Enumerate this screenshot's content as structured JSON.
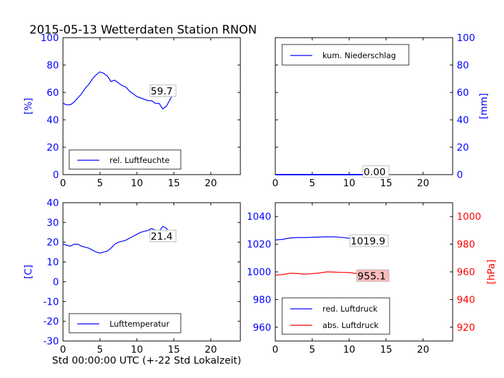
{
  "figure_title": "2015-05-13 Wetterdaten Station RNON",
  "xlabel": "Std 00:00:00 UTC (+-22 Std Lokalzeit)",
  "colors": {
    "blue": "#0000ff",
    "red": "#ff0000",
    "axis": "#000000",
    "label_box_red": "#ffbbbb"
  },
  "chart_data": [
    {
      "type": "line",
      "id": "humidity",
      "ylabel": "[%]",
      "xlim": [
        0,
        24
      ],
      "ylim": [
        0,
        100
      ],
      "xticks": [
        "0",
        "5",
        "10",
        "15",
        "20"
      ],
      "yticks": [
        "0",
        "20",
        "40",
        "60",
        "80",
        "100"
      ],
      "legend": "rel. Luftfeuchte",
      "legend_position": "lower left",
      "annotation": "59.7",
      "series": [
        {
          "color": "#0000ff",
          "x": [
            0,
            0.5,
            1,
            1.5,
            2,
            2.5,
            3,
            3.5,
            4,
            4.5,
            5,
            5.5,
            6,
            6.5,
            7,
            7.5,
            8,
            8.5,
            9,
            9.5,
            10,
            10.5,
            11,
            11.5,
            12,
            12.5,
            13,
            13.5,
            14,
            14.5,
            15
          ],
          "y": [
            52,
            51,
            51,
            53,
            56,
            59,
            63,
            66,
            70,
            73,
            75,
            74,
            72,
            68,
            69,
            67,
            65,
            64,
            61,
            59,
            57,
            56,
            55,
            54,
            54,
            52,
            52,
            48,
            50,
            55,
            60
          ]
        }
      ]
    },
    {
      "type": "line",
      "id": "precipitation",
      "ylabel": "[mm]",
      "xlim": [
        0,
        24
      ],
      "ylim": [
        0,
        100
      ],
      "xticks": [
        "0",
        "5",
        "10",
        "15",
        "20"
      ],
      "yticks": [
        "0",
        "20",
        "40",
        "60",
        "80",
        "100"
      ],
      "legend": "kum. Niederschlag",
      "legend_position": "upper left",
      "annotation": "0.00",
      "series": [
        {
          "color": "#0000ff",
          "x": [
            0,
            15
          ],
          "y": [
            0,
            0
          ]
        }
      ]
    },
    {
      "type": "line",
      "id": "temperature",
      "ylabel": "[C]",
      "xlim": [
        0,
        24
      ],
      "ylim": [
        -30,
        40
      ],
      "xticks": [
        "0",
        "5",
        "10",
        "15",
        "20"
      ],
      "yticks": [
        "-30",
        "-20",
        "-10",
        "0",
        "10",
        "20",
        "30",
        "40"
      ],
      "legend": "Lufttemperatur",
      "legend_position": "lower left",
      "annotation": "21.4",
      "series": [
        {
          "color": "#0000ff",
          "x": [
            0,
            0.5,
            1,
            1.5,
            2,
            2.5,
            3,
            3.5,
            4,
            4.5,
            5,
            5.5,
            6,
            6.5,
            7,
            7.5,
            8,
            8.5,
            9,
            9.5,
            10,
            10.5,
            11,
            11.5,
            12,
            12.5,
            13,
            13.5,
            14,
            14.5,
            15
          ],
          "y": [
            19,
            18.5,
            18,
            19,
            19,
            18,
            17.5,
            17,
            16,
            15,
            14.5,
            15,
            15.5,
            17,
            19,
            20,
            20.5,
            21,
            22,
            23,
            24,
            25,
            25.5,
            26,
            27,
            26,
            25.5,
            28,
            27,
            24,
            21
          ]
        }
      ]
    },
    {
      "type": "line",
      "id": "pressure",
      "ylabel_right": "[hPa]",
      "xlim": [
        0,
        24
      ],
      "ylim": [
        950,
        1050
      ],
      "ylim_right": [
        910,
        1010
      ],
      "xticks": [
        "0",
        "5",
        "10",
        "15",
        "20"
      ],
      "yticks": [
        "960",
        "980",
        "1000",
        "1020",
        "1040"
      ],
      "yticks_right": [
        "920",
        "940",
        "960",
        "980",
        "1000"
      ],
      "legend_position": "lower left",
      "annotations": [
        "1019.9",
        "955.1"
      ],
      "series": [
        {
          "name": "red. Luftdruck",
          "color": "#0000ff",
          "axis": "left",
          "x": [
            0,
            1,
            2,
            3,
            4,
            5,
            6,
            7,
            8,
            9,
            10,
            11,
            12,
            13,
            14,
            15
          ],
          "y": [
            1023,
            1023.5,
            1024.5,
            1024.8,
            1024.8,
            1025,
            1025.2,
            1025.3,
            1025.3,
            1024.9,
            1024.3,
            1023.5,
            1022.5,
            1021.5,
            1020.5,
            1019.9
          ]
        },
        {
          "name": "abs. Luftdruck",
          "color": "#ff0000",
          "axis": "right",
          "x": [
            0,
            1,
            2,
            3,
            4,
            5,
            6,
            7,
            8,
            9,
            10,
            11,
            12,
            13,
            14,
            15
          ],
          "y": [
            957.6,
            958,
            959,
            958.8,
            958.3,
            958.7,
            959.2,
            960,
            959.8,
            959.6,
            959.5,
            958.8,
            958,
            957.2,
            956.1,
            955.1
          ]
        }
      ]
    }
  ]
}
